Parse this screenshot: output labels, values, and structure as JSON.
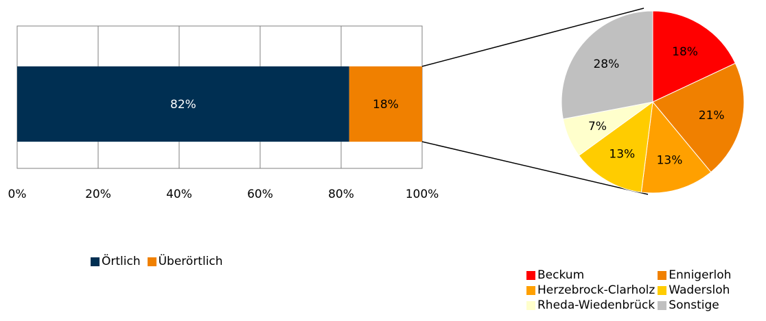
{
  "chart_data": [
    {
      "type": "bar",
      "orientation": "horizontal",
      "stacked": "percent",
      "categories": [
        ""
      ],
      "series": [
        {
          "name": "Örtlich",
          "values": [
            82
          ],
          "label": "82%",
          "color": "#002f52"
        },
        {
          "name": "Überörtlich",
          "values": [
            18
          ],
          "label": "18%",
          "color": "#f08000"
        }
      ],
      "x_ticks": [
        "0%",
        "20%",
        "40%",
        "60%",
        "80%",
        "100%"
      ],
      "xlim": [
        0,
        100
      ],
      "grid": true,
      "legend_position": "bottom"
    },
    {
      "type": "pie",
      "categories": [
        "Beckum",
        "Ennigerloh",
        "Herzebrock-Clarholz",
        "Wadersloh",
        "Rheda-Wiedenbrück",
        "Sonstige"
      ],
      "values": [
        18,
        21,
        13,
        13,
        7,
        28
      ],
      "labels": [
        "18%",
        "21%",
        "13%",
        "13%",
        "7%",
        "28%"
      ],
      "colors": [
        "#ff0000",
        "#f08000",
        "#ffa000",
        "#ffcc00",
        "#ffffcc",
        "#c0c0c0"
      ],
      "legend_position": "bottom-right"
    }
  ]
}
